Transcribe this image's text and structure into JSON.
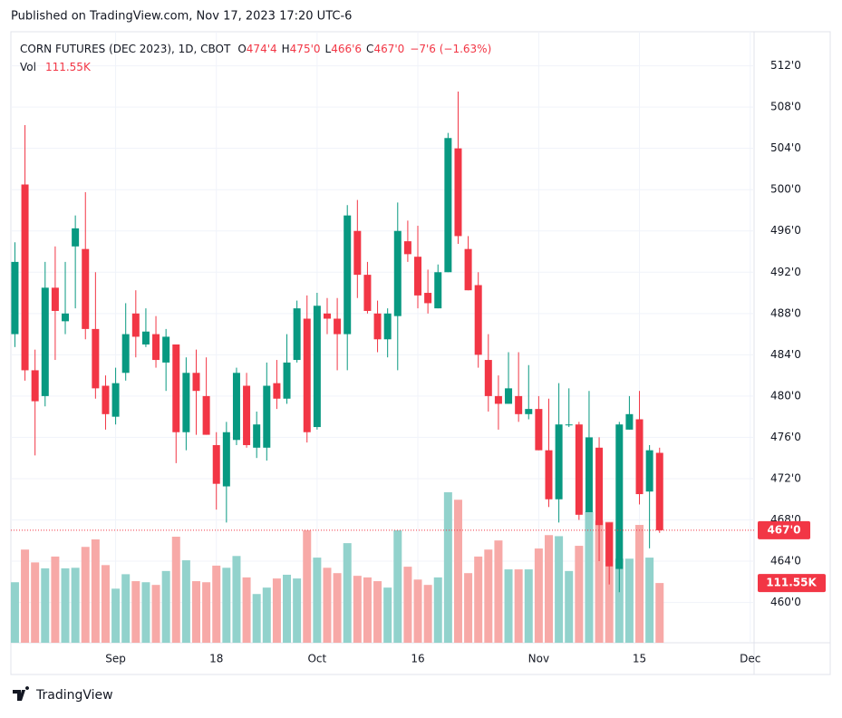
{
  "published": "Published on TradingView.com, Nov 17, 2023 17:20 UTC-6",
  "brand": "TradingView",
  "chart_data": {
    "type": "candlestick",
    "title": "CORN FUTURES (DEC 2023), 1D, CBOT",
    "ohlc_legend": [
      {
        "key": "O",
        "value": "474'4"
      },
      {
        "key": "H",
        "value": "475'0"
      },
      {
        "key": "L",
        "value": "466'6"
      },
      {
        "key": "C",
        "value": "467'0"
      }
    ],
    "change_label": "−7'6 (−1.63%)",
    "volume_title": "Vol",
    "volume_last_label": "111.55K",
    "last_price_label": "467'0",
    "up_color": "#089981",
    "down_color": "#f23645",
    "volume_up_color": "#92d2cc",
    "volume_down_color": "#f7a9a7",
    "grid": true,
    "open": [
      486,
      500.5,
      482.5,
      480,
      490.5,
      487.25,
      494.5,
      494.25,
      486.5,
      481,
      478,
      482.25,
      488,
      485,
      486,
      483.25,
      485,
      476.5,
      482.25,
      480,
      475.25,
      471.25,
      475.75,
      481,
      475,
      475,
      481.25,
      479.75,
      483.5,
      487.5,
      477,
      488,
      487.5,
      486,
      496,
      491.75,
      488,
      485.5,
      487.75,
      495,
      493.5,
      490,
      488.5,
      492,
      504,
      494.25,
      490.75,
      483.5,
      480,
      479.25,
      480,
      478.25,
      478.75,
      474.75,
      470,
      477.25,
      477.25,
      468.75,
      475,
      467.75,
      463.25,
      476.75,
      477.75,
      470.75,
      474.5
    ],
    "high": [
      494.9,
      506.25,
      484.5,
      493,
      494.5,
      493,
      497.5,
      499.75,
      492,
      482,
      482.75,
      489,
      490.25,
      488.5,
      487.75,
      486.5,
      485,
      483.75,
      484.5,
      483.75,
      476.5,
      477.5,
      482.75,
      482.25,
      478.5,
      483.25,
      483.5,
      486,
      489.25,
      489.75,
      490,
      489.5,
      489.5,
      498.5,
      499,
      493,
      489.25,
      488.5,
      498.75,
      497,
      496.5,
      492.25,
      492.75,
      505.5,
      509.5,
      495.5,
      492,
      486,
      482,
      484.25,
      484.25,
      483,
      480,
      479.75,
      481.25,
      480.75,
      477.5,
      480.5,
      476,
      467.75,
      477.5,
      480,
      480.5,
      475.25,
      475
    ],
    "low": [
      484.75,
      481.5,
      474.25,
      479,
      483.5,
      486,
      488.5,
      485.5,
      479.75,
      476.75,
      477.25,
      481.5,
      483.75,
      484.75,
      482.75,
      480.5,
      473.5,
      474.75,
      476.25,
      476.25,
      469,
      467.75,
      475.25,
      475,
      474,
      473.75,
      478.75,
      479.25,
      483.25,
      475.5,
      476.75,
      486,
      482.5,
      482.5,
      489.5,
      488,
      484.25,
      483.75,
      482.5,
      493,
      488.5,
      488,
      488.5,
      492,
      494.75,
      490.25,
      482.75,
      478.5,
      476.75,
      479.25,
      477.5,
      477.75,
      474.75,
      469.25,
      467.75,
      477,
      468,
      468.75,
      464,
      461.75,
      461,
      476.75,
      469.5,
      465.25,
      466.75
    ],
    "close": [
      493,
      482.5,
      479.5,
      490.5,
      488.25,
      488,
      496.25,
      486.5,
      480.75,
      478.25,
      481.25,
      486,
      485.75,
      486.25,
      483.5,
      485.75,
      476.5,
      482.25,
      480.5,
      476.25,
      471.5,
      476.5,
      482.25,
      475.25,
      477.25,
      481,
      479.75,
      483.25,
      488.5,
      476.5,
      488.75,
      487.5,
      486,
      497.5,
      491.75,
      488.25,
      485.5,
      488,
      496,
      493.75,
      489.75,
      489,
      492,
      505,
      495.5,
      490.25,
      484,
      480,
      479.25,
      480.75,
      478.25,
      478.75,
      474.75,
      470,
      477.25,
      477.25,
      468.5,
      476,
      467.5,
      463.5,
      477.25,
      478.25,
      470.5,
      474.75,
      467
    ],
    "volume": [
      113000,
      174000,
      150000,
      139000,
      161000,
      139000,
      140000,
      179000,
      193000,
      145000,
      101000,
      128000,
      115000,
      113000,
      108000,
      134000,
      198000,
      154000,
      115000,
      113000,
      144000,
      140000,
      162000,
      122000,
      91000,
      103000,
      120000,
      127000,
      120000,
      210000,
      159000,
      140000,
      130000,
      186000,
      125000,
      122000,
      115000,
      103000,
      210000,
      142000,
      118000,
      108000,
      122000,
      281000,
      267000,
      130000,
      161000,
      174000,
      191000,
      137000,
      137000,
      137000,
      176000,
      201000,
      199000,
      134000,
      181000,
      245000,
      228000,
      226000,
      157000,
      157000,
      220000,
      159000,
      111550
    ],
    "ylim": [
      456.1,
      515.3
    ],
    "yticks": [
      {
        "value": 460,
        "label": "460'0"
      },
      {
        "value": 464,
        "label": "464'0"
      },
      {
        "value": 468,
        "label": "468'0"
      },
      {
        "value": 472,
        "label": "472'0"
      },
      {
        "value": 476,
        "label": "476'0"
      },
      {
        "value": 480,
        "label": "480'0"
      },
      {
        "value": 484,
        "label": "484'0"
      },
      {
        "value": 488,
        "label": "488'0"
      },
      {
        "value": 492,
        "label": "492'0"
      },
      {
        "value": 496,
        "label": "496'0"
      },
      {
        "value": 500,
        "label": "500'0"
      },
      {
        "value": 504,
        "label": "504'0"
      },
      {
        "value": 508,
        "label": "508'0"
      },
      {
        "value": 512,
        "label": "512'0"
      }
    ],
    "xlim": [
      -0.4,
      73.2
    ],
    "xticks": [
      {
        "value": 10,
        "label": "Sep"
      },
      {
        "value": 20,
        "label": "18"
      },
      {
        "value": 30,
        "label": "Oct"
      },
      {
        "value": 40,
        "label": "16"
      },
      {
        "value": 52,
        "label": "Nov"
      },
      {
        "value": 62,
        "label": "15"
      },
      {
        "value": 73,
        "label": "Dec"
      }
    ]
  }
}
